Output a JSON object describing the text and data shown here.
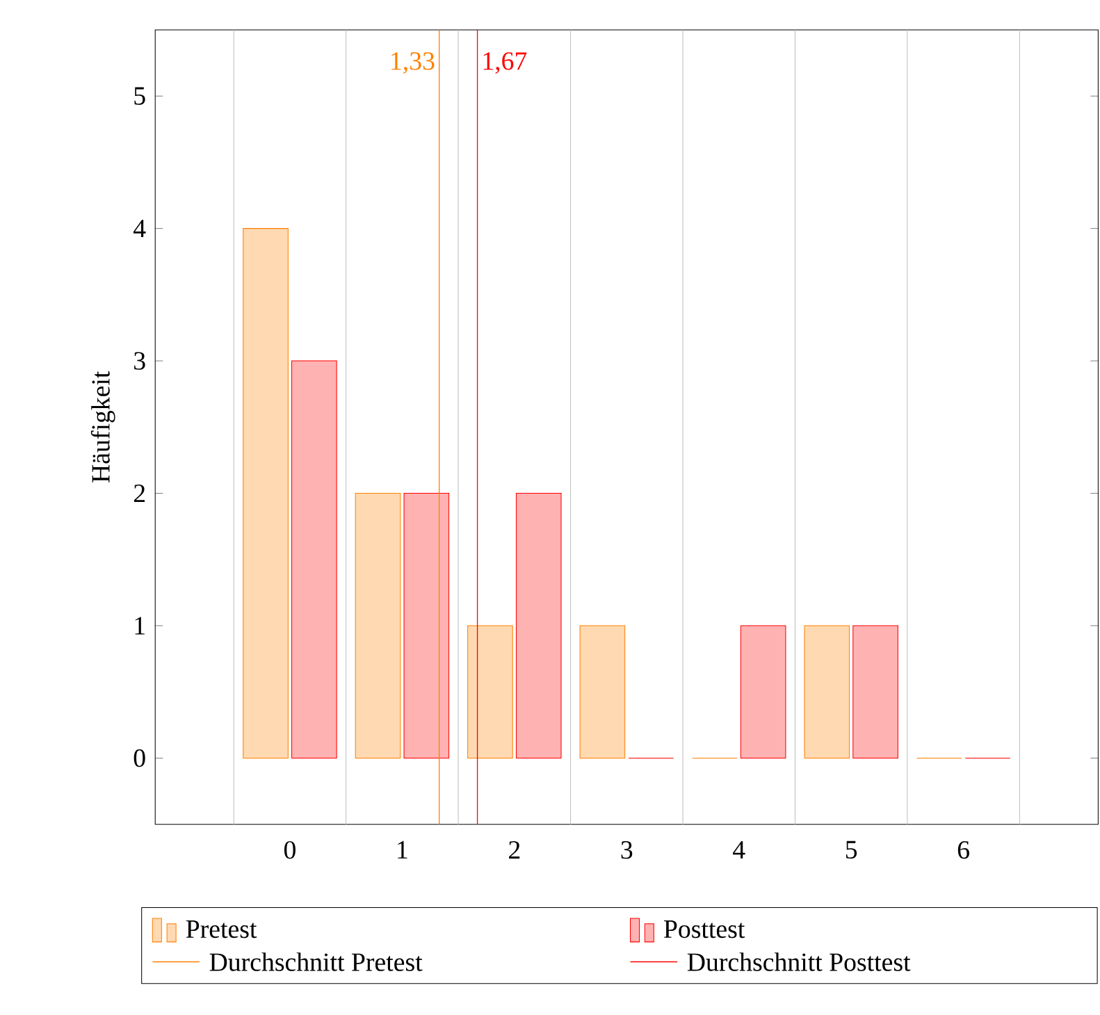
{
  "chart_data": {
    "type": "bar",
    "ylabel": "Häufigkeit",
    "x": [
      0,
      1,
      2,
      3,
      4,
      5,
      6
    ],
    "series": [
      {
        "name": "Pretest",
        "color": "#ff8000",
        "values": [
          4,
          2,
          1,
          1,
          0,
          1,
          0
        ]
      },
      {
        "name": "Posttest",
        "color": "#ff0000",
        "values": [
          3,
          2,
          2,
          0,
          1,
          1,
          0
        ]
      }
    ],
    "xlim": [
      -1.2,
      7.2
    ],
    "ylim": [
      -0.5,
      5.5
    ],
    "xticks": [
      {
        "value": -0.5,
        "label": null
      },
      0,
      {
        "value": 0.5,
        "label": null
      },
      1,
      {
        "value": 1.5,
        "label": null
      },
      2,
      {
        "value": 2.5,
        "label": null
      },
      3,
      {
        "value": 3.5,
        "label": null
      },
      4,
      {
        "value": 4.5,
        "label": null
      },
      5,
      {
        "value": 5.5,
        "label": null
      },
      6,
      {
        "value": 6.5,
        "label": null
      }
    ],
    "yticks": [
      0,
      1,
      2,
      3,
      4,
      5
    ],
    "grid": "x",
    "legend": "bottom",
    "ref_lines": [
      {
        "axis": "x",
        "value": 1.33,
        "label": "Durchschnitt Pretest",
        "color": "#ff8000"
      },
      {
        "axis": "x",
        "value": 1.67,
        "label": "Durchschnitt Posttest",
        "color": "#ff0000"
      }
    ],
    "annotations": [
      {
        "text": "1,33",
        "x": 1.33,
        "y": 5.25
      },
      {
        "text": "1,67",
        "x": 1.67,
        "y": 5.25
      }
    ]
  }
}
